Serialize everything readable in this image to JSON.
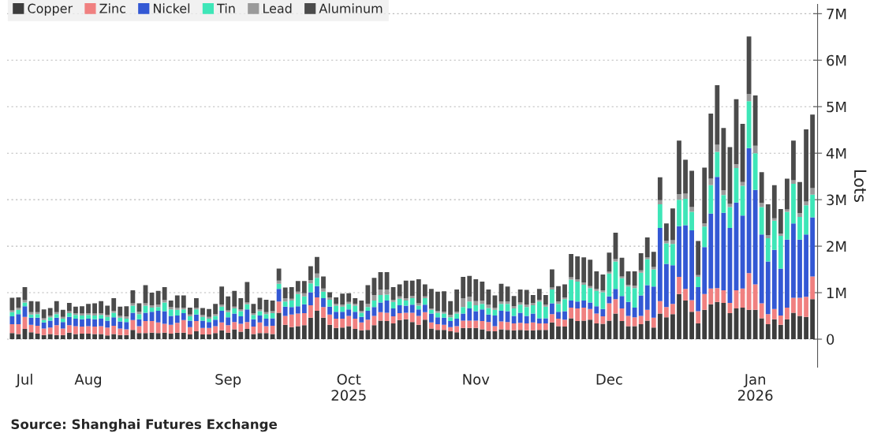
{
  "chart_data": {
    "type": "bar",
    "stacked": true,
    "categories": [
      null,
      null,
      "Jul",
      null,
      null,
      null,
      null,
      null,
      null,
      null,
      null,
      null,
      "Aug",
      null,
      null,
      null,
      null,
      null,
      null,
      null,
      null,
      null,
      null,
      null,
      null,
      null,
      null,
      null,
      null,
      null,
      null,
      null,
      null,
      null,
      "Sep",
      null,
      null,
      null,
      null,
      null,
      null,
      null,
      null,
      null,
      null,
      null,
      null,
      null,
      null,
      null,
      null,
      null,
      null,
      "Oct\n2025",
      null,
      null,
      null,
      null,
      null,
      null,
      null,
      null,
      null,
      null,
      null,
      null,
      null,
      null,
      null,
      null,
      null,
      null,
      null,
      "Nov",
      null,
      null,
      null,
      null,
      null,
      null,
      null,
      null,
      null,
      null,
      null,
      null,
      null,
      null,
      null,
      null,
      null,
      null,
      null,
      null,
      "Dec",
      null,
      null,
      null,
      null,
      null,
      null,
      null,
      null,
      null,
      null,
      null,
      null,
      null,
      null,
      null,
      null,
      null,
      null,
      null,
      null,
      null,
      null,
      "Jan\n2026",
      null,
      null,
      null,
      null,
      null,
      null,
      null,
      null,
      null
    ],
    "series": [
      {
        "name": "Copper",
        "color": "#3d3d3d",
        "values": [
          0.13,
          0.11,
          0.22,
          0.15,
          0.12,
          0.09,
          0.11,
          0.09,
          0.09,
          0.14,
          0.11,
          0.12,
          0.12,
          0.11,
          0.11,
          0.08,
          0.11,
          0.09,
          0.09,
          0.2,
          0.13,
          0.13,
          0.14,
          0.13,
          0.14,
          0.12,
          0.14,
          0.14,
          0.1,
          0.17,
          0.1,
          0.1,
          0.13,
          0.19,
          0.14,
          0.21,
          0.16,
          0.22,
          0.11,
          0.13,
          0.13,
          0.11,
          0.57,
          0.31,
          0.26,
          0.28,
          0.3,
          0.46,
          0.61,
          0.46,
          0.31,
          0.24,
          0.25,
          0.28,
          0.22,
          0.19,
          0.2,
          0.3,
          0.4,
          0.39,
          0.34,
          0.41,
          0.43,
          0.37,
          0.31,
          0.42,
          0.23,
          0.2,
          0.2,
          0.17,
          0.15,
          0.24,
          0.24,
          0.24,
          0.21,
          0.18,
          0.17,
          0.21,
          0.2,
          0.19,
          0.2,
          0.19,
          0.19,
          0.2,
          0.2,
          0.36,
          0.28,
          0.27,
          0.45,
          0.39,
          0.4,
          0.42,
          0.34,
          0.33,
          0.4,
          0.55,
          0.39,
          0.28,
          0.28,
          0.32,
          0.4,
          0.25,
          0.55,
          0.47,
          0.54,
          0.97,
          0.83,
          0.59,
          0.34,
          0.63,
          0.75,
          0.8,
          0.78,
          0.56,
          0.66,
          0.68,
          0.63,
          0.63,
          0.45,
          0.32,
          0.43,
          0.31,
          0.43,
          0.57,
          0.5,
          0.48,
          0.86
        ]
      },
      {
        "name": "Zinc",
        "color": "#f08080",
        "values": [
          0.19,
          0.21,
          0.26,
          0.16,
          0.17,
          0.14,
          0.14,
          0.21,
          0.14,
          0.16,
          0.17,
          0.15,
          0.16,
          0.16,
          0.17,
          0.17,
          0.18,
          0.14,
          0.12,
          0.21,
          0.15,
          0.26,
          0.25,
          0.23,
          0.19,
          0.19,
          0.21,
          0.27,
          0.16,
          0.22,
          0.14,
          0.14,
          0.15,
          0.17,
          0.16,
          0.16,
          0.17,
          0.15,
          0.16,
          0.23,
          0.15,
          0.18,
          0.24,
          0.19,
          0.27,
          0.27,
          0.26,
          0.27,
          0.29,
          0.23,
          0.22,
          0.2,
          0.19,
          0.22,
          0.22,
          0.17,
          0.22,
          0.2,
          0.18,
          0.18,
          0.15,
          0.15,
          0.14,
          0.2,
          0.19,
          0.16,
          0.13,
          0.12,
          0.11,
          0.09,
          0.13,
          0.16,
          0.16,
          0.16,
          0.18,
          0.19,
          0.11,
          0.17,
          0.17,
          0.15,
          0.15,
          0.15,
          0.17,
          0.14,
          0.14,
          0.18,
          0.16,
          0.15,
          0.23,
          0.27,
          0.28,
          0.23,
          0.21,
          0.16,
          0.37,
          0.31,
          0.27,
          0.22,
          0.19,
          0.18,
          0.23,
          0.21,
          0.27,
          0.22,
          0.22,
          0.37,
          0.25,
          0.25,
          0.26,
          0.34,
          0.34,
          0.3,
          0.27,
          0.22,
          0.39,
          0.41,
          0.79,
          0.55,
          0.32,
          0.22,
          0.22,
          0.2,
          0.25,
          0.32,
          0.39,
          0.43,
          0.49
        ]
      },
      {
        "name": "Nickel",
        "color": "#3358d4",
        "values": [
          0.17,
          0.22,
          0.23,
          0.15,
          0.17,
          0.13,
          0.15,
          0.16,
          0.14,
          0.18,
          0.16,
          0.16,
          0.16,
          0.16,
          0.16,
          0.15,
          0.18,
          0.15,
          0.16,
          0.16,
          0.15,
          0.18,
          0.2,
          0.25,
          0.27,
          0.19,
          0.16,
          0.15,
          0.14,
          0.14,
          0.16,
          0.13,
          0.14,
          0.25,
          0.17,
          0.18,
          0.16,
          0.27,
          0.16,
          0.15,
          0.16,
          0.16,
          0.27,
          0.2,
          0.16,
          0.16,
          0.19,
          0.28,
          0.24,
          0.19,
          0.17,
          0.15,
          0.15,
          0.14,
          0.15,
          0.12,
          0.19,
          0.19,
          0.21,
          0.26,
          0.17,
          0.17,
          0.15,
          0.17,
          0.14,
          0.16,
          0.19,
          0.15,
          0.15,
          0.13,
          0.16,
          0.15,
          0.26,
          0.2,
          0.25,
          0.16,
          0.23,
          0.23,
          0.23,
          0.16,
          0.22,
          0.16,
          0.19,
          0.11,
          0.11,
          0.23,
          0.15,
          0.18,
          0.15,
          0.15,
          0.15,
          0.14,
          0.16,
          0.16,
          0.15,
          0.22,
          0.27,
          0.3,
          0.21,
          0.44,
          0.53,
          0.67,
          1.57,
          0.93,
          0.83,
          1.09,
          1.37,
          1.5,
          0.52,
          1.01,
          1.61,
          2.39,
          1.67,
          1.61,
          1.89,
          1.57,
          2.69,
          2.03,
          1.48,
          1.13,
          1.27,
          1.01,
          1.46,
          1.6,
          1.25,
          1.34,
          1.27
        ]
      },
      {
        "name": "Tin",
        "color": "#3ee6b8",
        "values": [
          0.09,
          0.09,
          0.08,
          0.07,
          0.08,
          0.05,
          0.07,
          0.08,
          0.07,
          0.08,
          0.08,
          0.08,
          0.08,
          0.08,
          0.08,
          0.08,
          0.1,
          0.08,
          0.07,
          0.15,
          0.11,
          0.15,
          0.09,
          0.08,
          0.19,
          0.14,
          0.12,
          0.08,
          0.09,
          0.11,
          0.08,
          0.07,
          0.08,
          0.09,
          0.11,
          0.11,
          0.11,
          0.11,
          0.09,
          0.09,
          0.1,
          0.11,
          0.11,
          0.11,
          0.14,
          0.26,
          0.17,
          0.19,
          0.18,
          0.14,
          0.15,
          0.13,
          0.11,
          0.12,
          0.13,
          0.09,
          0.08,
          0.14,
          0.16,
          0.13,
          0.14,
          0.14,
          0.11,
          0.14,
          0.08,
          0.14,
          0.08,
          0.1,
          0.09,
          0.08,
          0.11,
          0.14,
          0.15,
          0.13,
          0.12,
          0.14,
          0.12,
          0.15,
          0.16,
          0.16,
          0.17,
          0.19,
          0.18,
          0.36,
          0.25,
          0.3,
          0.17,
          0.26,
          0.45,
          0.43,
          0.34,
          0.31,
          0.33,
          0.36,
          0.49,
          0.59,
          0.38,
          0.33,
          0.42,
          0.49,
          0.56,
          0.37,
          0.51,
          0.44,
          0.46,
          0.57,
          0.57,
          0.4,
          0.22,
          0.44,
          0.61,
          0.54,
          0.38,
          0.45,
          0.74,
          0.64,
          1.01,
          0.79,
          0.59,
          0.5,
          0.63,
          0.7,
          0.6,
          0.85,
          0.49,
          0.63,
          0.49
        ]
      },
      {
        "name": "Lead",
        "color": "#9a9a9a",
        "values": [
          0.04,
          0.05,
          0.05,
          0.05,
          0.04,
          0.04,
          0.04,
          0.04,
          0.04,
          0.04,
          0.04,
          0.04,
          0.04,
          0.04,
          0.04,
          0.04,
          0.04,
          0.04,
          0.05,
          0.05,
          0.05,
          0.05,
          0.05,
          0.05,
          0.05,
          0.05,
          0.05,
          0.04,
          0.04,
          0.04,
          0.04,
          0.04,
          0.04,
          0.04,
          0.04,
          0.04,
          0.04,
          0.04,
          0.04,
          0.04,
          0.04,
          0.04,
          0.07,
          0.07,
          0.04,
          0.05,
          0.07,
          0.07,
          0.09,
          0.07,
          0.05,
          0.04,
          0.04,
          0.04,
          0.04,
          0.04,
          0.07,
          0.12,
          0.12,
          0.11,
          0.05,
          0.05,
          0.05,
          0.05,
          0.05,
          0.04,
          0.03,
          0.04,
          0.04,
          0.05,
          0.04,
          0.19,
          0.1,
          0.09,
          0.07,
          0.07,
          0.05,
          0.05,
          0.05,
          0.05,
          0.05,
          0.05,
          0.05,
          0.04,
          0.04,
          0.04,
          0.05,
          0.04,
          0.05,
          0.05,
          0.05,
          0.04,
          0.04,
          0.04,
          0.04,
          0.05,
          0.04,
          0.04,
          0.05,
          0.05,
          0.04,
          0.05,
          0.09,
          0.05,
          0.08,
          0.12,
          0.11,
          0.1,
          0.04,
          0.07,
          0.14,
          0.15,
          0.1,
          0.07,
          0.08,
          0.08,
          0.15,
          0.16,
          0.09,
          0.07,
          0.05,
          0.05,
          0.05,
          0.08,
          0.08,
          0.08,
          0.14
        ]
      },
      {
        "name": "Aluminum",
        "color": "#4b4b4b",
        "values": [
          0.27,
          0.22,
          0.28,
          0.24,
          0.23,
          0.19,
          0.16,
          0.24,
          0.15,
          0.18,
          0.14,
          0.16,
          0.2,
          0.22,
          0.26,
          0.2,
          0.27,
          0.2,
          0.22,
          0.28,
          0.18,
          0.39,
          0.27,
          0.3,
          0.28,
          0.14,
          0.26,
          0.26,
          0.15,
          0.2,
          0.15,
          0.17,
          0.22,
          0.39,
          0.3,
          0.34,
          0.24,
          0.44,
          0.2,
          0.25,
          0.27,
          0.23,
          0.26,
          0.23,
          0.25,
          0.23,
          0.26,
          0.3,
          0.36,
          0.26,
          0.11,
          0.14,
          0.24,
          0.19,
          0.12,
          0.22,
          0.4,
          0.37,
          0.37,
          0.37,
          0.27,
          0.26,
          0.38,
          0.33,
          0.52,
          0.26,
          0.42,
          0.41,
          0.44,
          0.3,
          0.48,
          0.46,
          0.45,
          0.47,
          0.41,
          0.33,
          0.26,
          0.38,
          0.32,
          0.22,
          0.28,
          0.32,
          0.17,
          0.23,
          0.21,
          0.39,
          0.33,
          0.28,
          0.5,
          0.49,
          0.54,
          0.57,
          0.38,
          0.34,
          0.41,
          0.57,
          0.4,
          0.29,
          0.31,
          0.37,
          0.43,
          0.33,
          0.49,
          0.38,
          0.68,
          1.15,
          0.73,
          0.78,
          0.73,
          1.2,
          1.4,
          1.28,
          1.34,
          1.22,
          1.4,
          1.25,
          1.24,
          1.08,
          0.66,
          0.66,
          0.71,
          0.53,
          0.66,
          0.85,
          0.67,
          1.55,
          1.58
        ]
      }
    ],
    "ylim": [
      -0.6,
      7.2
    ],
    "yticks": [
      0,
      {
        "value": 1,
        "label": "1M"
      },
      {
        "value": 2,
        "label": "2M"
      },
      {
        "value": 3,
        "label": "3M"
      },
      {
        "value": 4,
        "label": "4M"
      },
      {
        "value": 5,
        "label": "5M"
      },
      {
        "value": 6,
        "label": "6M"
      },
      {
        "value": 7,
        "label": "7M"
      }
    ],
    "ylabel": "Lots",
    "grid": "y",
    "legend": "top left",
    "annotations": [
      "Source: Shanghai Futures Exchange"
    ]
  }
}
